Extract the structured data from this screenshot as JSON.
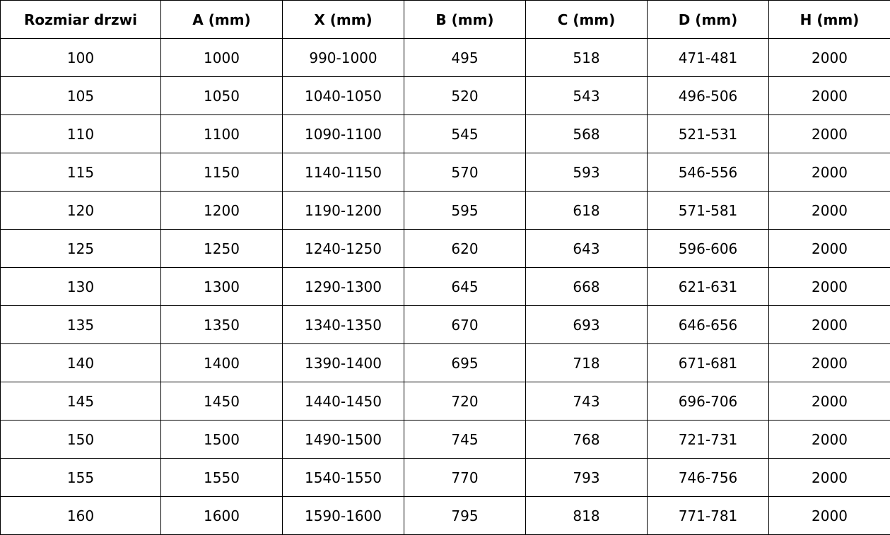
{
  "table": {
    "headers": [
      "Rozmiar drzwi",
      "A (mm)",
      "X (mm)",
      "B (mm)",
      "C (mm)",
      "D (mm)",
      "H (mm)"
    ],
    "rows": [
      [
        "100",
        "1000",
        "990-1000",
        "495",
        "518",
        "471-481",
        "2000"
      ],
      [
        "105",
        "1050",
        "1040-1050",
        "520",
        "543",
        "496-506",
        "2000"
      ],
      [
        "110",
        "1100",
        "1090-1100",
        "545",
        "568",
        "521-531",
        "2000"
      ],
      [
        "115",
        "1150",
        "1140-1150",
        "570",
        "593",
        "546-556",
        "2000"
      ],
      [
        "120",
        "1200",
        "1190-1200",
        "595",
        "618",
        "571-581",
        "2000"
      ],
      [
        "125",
        "1250",
        "1240-1250",
        "620",
        "643",
        "596-606",
        "2000"
      ],
      [
        "130",
        "1300",
        "1290-1300",
        "645",
        "668",
        "621-631",
        "2000"
      ],
      [
        "135",
        "1350",
        "1340-1350",
        "670",
        "693",
        "646-656",
        "2000"
      ],
      [
        "140",
        "1400",
        "1390-1400",
        "695",
        "718",
        "671-681",
        "2000"
      ],
      [
        "145",
        "1450",
        "1440-1450",
        "720",
        "743",
        "696-706",
        "2000"
      ],
      [
        "150",
        "1500",
        "1490-1500",
        "745",
        "768",
        "721-731",
        "2000"
      ],
      [
        "155",
        "1550",
        "1540-1550",
        "770",
        "793",
        "746-756",
        "2000"
      ],
      [
        "160",
        "1600",
        "1590-1600",
        "795",
        "818",
        "771-781",
        "2000"
      ]
    ]
  }
}
